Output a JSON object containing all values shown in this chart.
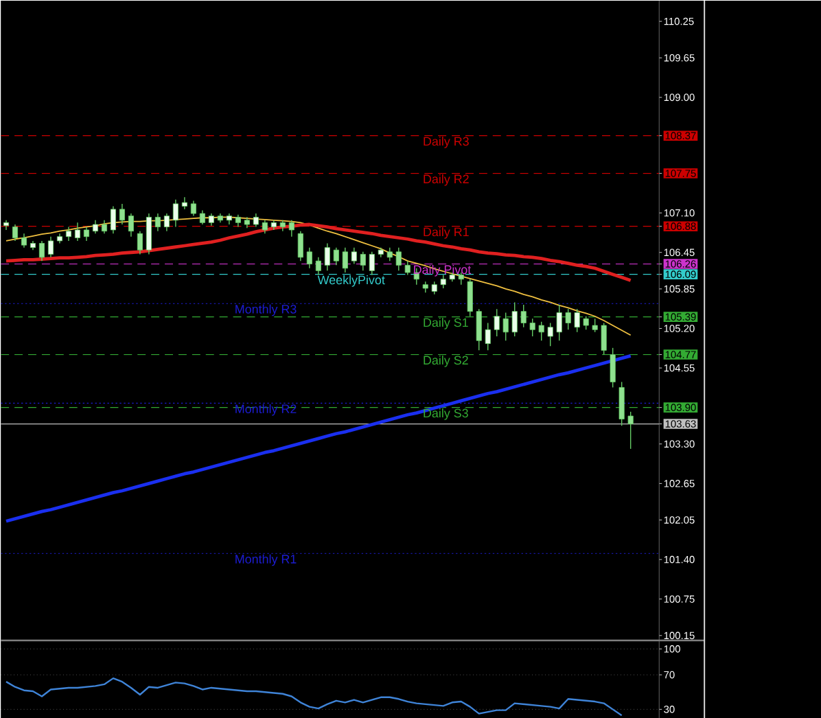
{
  "chart_data": [
    {
      "type": "candlestick",
      "categories": [
        null,
        null,
        null,
        null,
        null,
        null,
        null,
        null,
        null,
        null,
        null,
        null,
        null,
        null,
        null,
        null,
        null,
        null,
        null,
        null,
        null,
        null,
        null,
        null,
        null,
        null,
        null,
        null,
        null,
        null,
        null,
        null,
        null,
        null,
        null,
        null,
        null,
        null,
        null,
        null,
        null,
        null,
        null,
        null,
        null,
        null,
        null,
        null,
        null,
        null,
        null,
        null,
        null,
        null,
        null,
        null,
        null,
        null,
        null,
        null,
        null,
        null,
        null,
        null,
        null,
        null,
        null,
        null,
        null,
        null,
        null
      ],
      "ohlc": [
        [
          106.89,
          106.98,
          106.82,
          106.94
        ],
        [
          106.87,
          106.91,
          106.64,
          106.69
        ],
        [
          106.69,
          106.76,
          106.53,
          106.57
        ],
        [
          106.53,
          106.64,
          106.49,
          106.6
        ],
        [
          106.6,
          106.64,
          106.31,
          106.37
        ],
        [
          106.42,
          106.71,
          106.37,
          106.64
        ],
        [
          106.64,
          106.76,
          106.6,
          106.71
        ],
        [
          106.71,
          106.87,
          106.64,
          106.8
        ],
        [
          106.69,
          106.94,
          106.64,
          106.82
        ],
        [
          106.82,
          106.87,
          106.64,
          106.71
        ],
        [
          106.8,
          106.98,
          106.76,
          106.91
        ],
        [
          106.91,
          106.98,
          106.76,
          106.8
        ],
        [
          106.82,
          107.21,
          106.76,
          107.16
        ],
        [
          107.16,
          107.25,
          106.91,
          106.98
        ],
        [
          107.05,
          107.09,
          106.71,
          106.8
        ],
        [
          106.76,
          106.8,
          106.42,
          106.49
        ],
        [
          106.49,
          107.09,
          106.42,
          107.03
        ],
        [
          107.03,
          107.09,
          106.8,
          106.87
        ],
        [
          106.87,
          107.09,
          106.8,
          107.05
        ],
        [
          106.98,
          107.32,
          106.87,
          107.25
        ],
        [
          107.21,
          107.36,
          107.16,
          107.27
        ],
        [
          107.25,
          107.3,
          107.05,
          107.09
        ],
        [
          107.09,
          107.14,
          106.91,
          106.94
        ],
        [
          106.94,
          107.09,
          106.89,
          107.05
        ],
        [
          107.05,
          107.09,
          106.94,
          106.98
        ],
        [
          106.98,
          107.09,
          106.91,
          107.05
        ],
        [
          107.03,
          107.07,
          106.87,
          106.94
        ],
        [
          106.98,
          107.03,
          106.85,
          106.91
        ],
        [
          106.91,
          107.09,
          106.87,
          107.03
        ],
        [
          106.94,
          106.98,
          106.76,
          106.82
        ],
        [
          106.87,
          106.98,
          106.82,
          106.94
        ],
        [
          106.94,
          106.98,
          106.8,
          106.87
        ],
        [
          106.94,
          106.98,
          106.71,
          106.82
        ],
        [
          106.76,
          106.8,
          106.31,
          106.37
        ],
        [
          106.46,
          106.53,
          106.19,
          106.26
        ],
        [
          106.31,
          106.37,
          106.08,
          106.15
        ],
        [
          106.24,
          106.6,
          106.15,
          106.53
        ],
        [
          106.49,
          106.53,
          106.24,
          106.31
        ],
        [
          106.46,
          106.53,
          106.12,
          106.19
        ],
        [
          106.31,
          106.53,
          106.26,
          106.46
        ],
        [
          106.42,
          106.46,
          106.15,
          106.24
        ],
        [
          106.15,
          106.46,
          106.08,
          106.42
        ],
        [
          106.42,
          106.53,
          106.37,
          106.49
        ],
        [
          106.46,
          106.53,
          106.31,
          106.37
        ],
        [
          106.46,
          106.53,
          106.15,
          106.24
        ],
        [
          106.24,
          106.31,
          106.08,
          106.12
        ],
        [
          106.12,
          106.19,
          105.92,
          106.01
        ],
        [
          105.92,
          105.97,
          105.79,
          105.86
        ],
        [
          105.81,
          105.97,
          105.76,
          105.92
        ],
        [
          105.92,
          106.08,
          105.86,
          106.01
        ],
        [
          106.01,
          106.12,
          105.97,
          106.08
        ],
        [
          106.08,
          106.12,
          105.92,
          106.01
        ],
        [
          105.97,
          106.01,
          105.4,
          105.48
        ],
        [
          105.48,
          105.52,
          104.84,
          105.0
        ],
        [
          104.95,
          105.29,
          104.84,
          105.18
        ],
        [
          105.18,
          105.52,
          105.07,
          105.4
        ],
        [
          105.36,
          105.46,
          105.0,
          105.14
        ],
        [
          105.14,
          105.63,
          105.07,
          105.48
        ],
        [
          105.48,
          105.59,
          105.22,
          105.29
        ],
        [
          105.29,
          105.36,
          105.07,
          105.18
        ],
        [
          105.25,
          105.31,
          105.0,
          105.14
        ],
        [
          105.07,
          105.29,
          104.91,
          105.22
        ],
        [
          105.14,
          105.59,
          105.0,
          105.46
        ],
        [
          105.46,
          105.52,
          105.18,
          105.29
        ],
        [
          105.22,
          105.52,
          105.14,
          105.46
        ],
        [
          105.36,
          105.4,
          105.18,
          105.25
        ],
        [
          105.25,
          105.36,
          105.14,
          105.18
        ],
        [
          105.25,
          105.29,
          104.77,
          104.84
        ],
        [
          104.77,
          104.88,
          104.23,
          104.32
        ],
        [
          104.23,
          104.32,
          103.6,
          103.71
        ],
        [
          103.76,
          103.83,
          103.22,
          103.63
        ]
      ],
      "series": [
        {
          "type": "line",
          "color": "#f0c040",
          "values": [
            106.64,
            106.67,
            106.69,
            106.72,
            106.75,
            106.77,
            106.8,
            106.82,
            106.85,
            106.87,
            106.89,
            106.92,
            106.94,
            106.95,
            106.96,
            106.96,
            106.97,
            106.97,
            106.98,
            106.99,
            107.0,
            107.01,
            107.02,
            107.02,
            107.03,
            107.03,
            107.02,
            107.01,
            107.0,
            106.99,
            106.98,
            106.97,
            106.96,
            106.94,
            106.9,
            106.85,
            106.8,
            106.76,
            106.71,
            106.66,
            106.61,
            106.56,
            106.51,
            106.44,
            106.38,
            106.31,
            106.27,
            106.23,
            106.18,
            106.14,
            106.1,
            106.06,
            106.02,
            105.98,
            105.94,
            105.9,
            105.85,
            105.81,
            105.76,
            105.72,
            105.67,
            105.63,
            105.58,
            105.54,
            105.49,
            105.45,
            105.4,
            105.33,
            105.25,
            105.17,
            105.09
          ]
        },
        {
          "type": "line",
          "color": "#e02020",
          "values": [
            106.31,
            106.32,
            106.33,
            106.33,
            106.34,
            106.35,
            106.36,
            106.36,
            106.37,
            106.38,
            106.4,
            106.41,
            106.42,
            106.44,
            106.45,
            106.46,
            106.48,
            106.5,
            106.52,
            106.54,
            106.56,
            106.58,
            106.6,
            106.62,
            106.65,
            106.69,
            106.72,
            106.75,
            106.79,
            106.82,
            106.85,
            106.87,
            106.88,
            106.9,
            106.91,
            106.89,
            106.87,
            106.84,
            106.82,
            106.8,
            106.78,
            106.76,
            106.73,
            106.71,
            106.69,
            106.67,
            106.64,
            106.62,
            106.59,
            106.56,
            106.54,
            106.51,
            106.49,
            106.46,
            106.44,
            106.43,
            106.41,
            106.4,
            106.38,
            106.37,
            106.35,
            106.32,
            106.3,
            106.27,
            106.24,
            106.22,
            106.19,
            106.14,
            106.09,
            106.04,
            105.99
          ]
        },
        {
          "type": "line",
          "color": "#1a2ff0",
          "values": [
            102.03,
            102.07,
            102.11,
            102.15,
            102.19,
            102.22,
            102.26,
            102.3,
            102.34,
            102.38,
            102.42,
            102.46,
            102.5,
            102.53,
            102.57,
            102.61,
            102.65,
            102.69,
            102.73,
            102.77,
            102.81,
            102.84,
            102.88,
            102.92,
            102.96,
            103.0,
            103.04,
            103.08,
            103.12,
            103.16,
            103.19,
            103.23,
            103.27,
            103.31,
            103.35,
            103.39,
            103.43,
            103.47,
            103.5,
            103.54,
            103.58,
            103.62,
            103.66,
            103.7,
            103.74,
            103.78,
            103.81,
            103.85,
            103.89,
            103.93,
            103.97,
            104.01,
            104.05,
            104.09,
            104.13,
            104.16,
            104.2,
            104.24,
            104.28,
            104.32,
            104.36,
            104.4,
            104.44,
            104.47,
            104.51,
            104.55,
            104.59,
            104.63,
            104.67,
            104.71,
            104.75
          ]
        }
      ],
      "ylim": [
        100.08,
        110.59
      ],
      "yticks": [
        {
          "value": 110.25,
          "label": "110.25"
        },
        {
          "value": 109.65,
          "label": "109.65"
        },
        {
          "value": 109.0,
          "label": "109.00"
        },
        {
          "value": 108.37,
          "label": "108.37"
        },
        {
          "value": 107.75,
          "label": "107.75"
        },
        {
          "value": 107.1,
          "label": "107.10"
        },
        {
          "value": 106.88,
          "label": "106.88"
        },
        {
          "value": 106.45,
          "label": "106.45"
        },
        {
          "value": 106.26,
          "label": "106.26"
        },
        {
          "value": 106.09,
          "label": "106.09"
        },
        {
          "value": 105.85,
          "label": "105.85"
        },
        {
          "value": 105.39,
          "label": "105.39"
        },
        {
          "value": 105.2,
          "label": "105.20"
        },
        {
          "value": 104.77,
          "label": "104.77"
        },
        {
          "value": 104.55,
          "label": "104.55"
        },
        {
          "value": 103.9,
          "label": "103.90"
        },
        {
          "value": 103.63,
          "label": "103.63"
        },
        {
          "value": 103.3,
          "label": "103.30"
        },
        {
          "value": 102.65,
          "label": "102.65"
        },
        {
          "value": 102.05,
          "label": "102.05"
        },
        {
          "value": 101.4,
          "label": "101.40"
        },
        {
          "value": 100.75,
          "label": "100.75"
        },
        {
          "value": 100.15,
          "label": "100.15"
        }
      ],
      "ref_lines": [
        {
          "axis": "y",
          "value": 108.37,
          "label": "Daily R3",
          "color": "#cc0000",
          "line_style": "dashed"
        },
        {
          "axis": "y",
          "value": 107.75,
          "label": "Daily R2",
          "color": "#cc0000",
          "line_style": "dashed"
        },
        {
          "axis": "y",
          "value": 106.88,
          "label": "Daily R1",
          "color": "#cc0000",
          "line_style": "dashed"
        },
        {
          "axis": "y",
          "value": 106.26,
          "label": "Daily Pivot",
          "color": "#cc33cc",
          "line_style": "dashed"
        },
        {
          "axis": "y",
          "value": 106.09,
          "label": "WeeklyPivot",
          "color": "#33cccc",
          "line_style": "dashed"
        },
        {
          "axis": "y",
          "value": 105.61,
          "label": "Monthly R3",
          "color": "#1c1cd0",
          "line_style": "dotted"
        },
        {
          "axis": "y",
          "value": 105.39,
          "label": "Daily S1",
          "color": "#33aa33",
          "line_style": "dashed"
        },
        {
          "axis": "y",
          "value": 104.77,
          "label": "Daily S2",
          "color": "#33aa33",
          "line_style": "dashed"
        },
        {
          "axis": "y",
          "value": 103.9,
          "label": "Daily S3",
          "color": "#33aa33",
          "line_style": "dashed"
        },
        {
          "axis": "y",
          "value": 103.97,
          "label": "Monthly R2",
          "color": "#1c1cd0",
          "line_style": "dotted"
        },
        {
          "axis": "y",
          "value": 101.5,
          "label": "Monthly R1",
          "color": "#1c1cd0",
          "line_style": "dotted"
        },
        {
          "axis": "y",
          "value": 103.63,
          "label": null,
          "color": "#c0c0c0",
          "line_style": "solid"
        }
      ],
      "tick_labels": "y"
    },
    {
      "type": "line",
      "categories": [
        null,
        null,
        null,
        null,
        null,
        null,
        null,
        null,
        null,
        null,
        null,
        null,
        null,
        null,
        null,
        null,
        null,
        null,
        null,
        null,
        null,
        null,
        null,
        null,
        null,
        null,
        null,
        null,
        null,
        null,
        null,
        null,
        null,
        null,
        null,
        null,
        null,
        null,
        null,
        null,
        null,
        null,
        null,
        null,
        null,
        null,
        null,
        null,
        null,
        null,
        null,
        null,
        null,
        null,
        null,
        null,
        null,
        null,
        null,
        null,
        null,
        null,
        null,
        null,
        null,
        null,
        null,
        null,
        null,
        null,
        null
      ],
      "values": [
        62,
        56,
        52,
        51,
        45,
        53,
        54,
        55,
        55,
        56,
        57,
        59,
        66,
        62,
        55,
        47,
        56,
        55,
        58,
        61,
        60,
        57,
        53,
        55,
        54,
        53,
        52,
        51,
        51,
        50,
        49,
        48,
        45,
        38,
        33,
        31,
        36,
        40,
        38,
        41,
        38,
        41,
        44,
        44,
        42,
        39,
        37,
        36,
        35,
        34,
        38,
        39,
        33,
        25,
        27,
        29,
        29,
        37,
        36,
        35,
        34,
        33,
        31,
        42,
        41,
        40,
        39,
        37,
        30,
        23,
        null
      ],
      "color": "#3f84d8",
      "ylim": [
        20,
        109
      ],
      "yticks": [
        100,
        70,
        30
      ],
      "grid": "y",
      "tick_labels": "y"
    }
  ]
}
